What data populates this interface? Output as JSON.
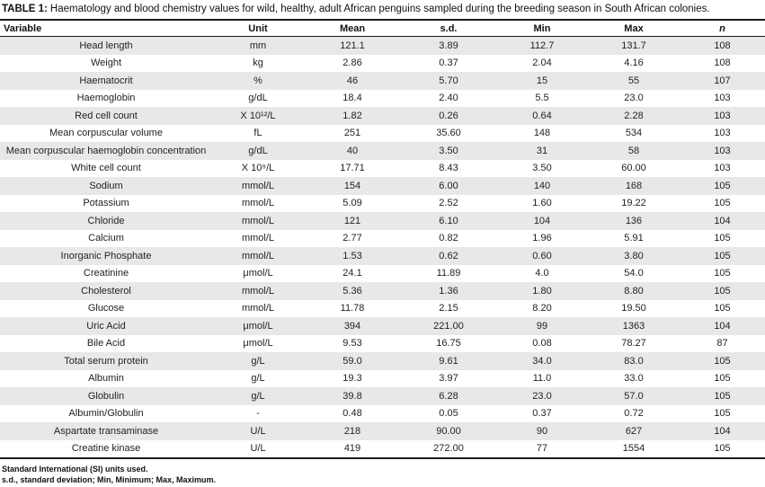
{
  "title": {
    "label": "TABLE 1:",
    "text": "Haematology and blood chemistry values for wild, healthy, adult African penguins sampled during the breeding season in South African colonies."
  },
  "table": {
    "columns": [
      "Variable",
      "Unit",
      "Mean",
      "s.d.",
      "Min",
      "Max",
      "n"
    ],
    "rows": [
      {
        "variable": "Head length",
        "unit": "mm",
        "mean": "121.1",
        "sd": "3.89",
        "min": "112.7",
        "max": "131.7",
        "n": "108"
      },
      {
        "variable": "Weight",
        "unit": "kg",
        "mean": "2.86",
        "sd": "0.37",
        "min": "2.04",
        "max": "4.16",
        "n": "108"
      },
      {
        "variable": "Haematocrit",
        "unit": "%",
        "mean": "46",
        "sd": "5.70",
        "min": "15",
        "max": "55",
        "n": "107"
      },
      {
        "variable": "Haemoglobin",
        "unit": "g/dL",
        "mean": "18.4",
        "sd": "2.40",
        "min": "5.5",
        "max": "23.0",
        "n": "103"
      },
      {
        "variable": "Red cell count",
        "unit": "X 10¹²/L",
        "mean": "1.82",
        "sd": "0.26",
        "min": "0.64",
        "max": "2.28",
        "n": "103"
      },
      {
        "variable": "Mean corpuscular volume",
        "unit": "fL",
        "mean": "251",
        "sd": "35.60",
        "min": "148",
        "max": "534",
        "n": "103"
      },
      {
        "variable": "Mean corpuscular haemoglobin concentration",
        "unit": "g/dL",
        "mean": "40",
        "sd": "3.50",
        "min": "31",
        "max": "58",
        "n": "103"
      },
      {
        "variable": "White cell count",
        "unit": "X 10⁹/L",
        "mean": "17.71",
        "sd": "8.43",
        "min": "3.50",
        "max": "60.00",
        "n": "103"
      },
      {
        "variable": "Sodium",
        "unit": "mmol/L",
        "mean": "154",
        "sd": "6.00",
        "min": "140",
        "max": "168",
        "n": "105"
      },
      {
        "variable": "Potassium",
        "unit": "mmol/L",
        "mean": "5.09",
        "sd": "2.52",
        "min": "1.60",
        "max": "19.22",
        "n": "105"
      },
      {
        "variable": "Chloride",
        "unit": "mmol/L",
        "mean": "121",
        "sd": "6.10",
        "min": "104",
        "max": "136",
        "n": "104"
      },
      {
        "variable": "Calcium",
        "unit": "mmol/L",
        "mean": "2.77",
        "sd": "0.82",
        "min": "1.96",
        "max": "5.91",
        "n": "105"
      },
      {
        "variable": "Inorganic Phosphate",
        "unit": "mmol/L",
        "mean": "1.53",
        "sd": "0.62",
        "min": "0.60",
        "max": "3.80",
        "n": "105"
      },
      {
        "variable": "Creatinine",
        "unit": "μmol/L",
        "mean": "24.1",
        "sd": "11.89",
        "min": "4.0",
        "max": "54.0",
        "n": "105"
      },
      {
        "variable": "Cholesterol",
        "unit": "mmol/L",
        "mean": "5.36",
        "sd": "1.36",
        "min": "1.80",
        "max": "8.80",
        "n": "105"
      },
      {
        "variable": "Glucose",
        "unit": "mmol/L",
        "mean": "11.78",
        "sd": "2.15",
        "min": "8.20",
        "max": "19.50",
        "n": "105"
      },
      {
        "variable": "Uric Acid",
        "unit": "μmol/L",
        "mean": "394",
        "sd": "221.00",
        "min": "99",
        "max": "1363",
        "n": "104"
      },
      {
        "variable": "Bile Acid",
        "unit": "μmol/L",
        "mean": "9.53",
        "sd": "16.75",
        "min": "0.08",
        "max": "78.27",
        "n": "87"
      },
      {
        "variable": "Total serum protein",
        "unit": "g/L",
        "mean": "59.0",
        "sd": "9.61",
        "min": "34.0",
        "max": "83.0",
        "n": "105"
      },
      {
        "variable": "Albumin",
        "unit": "g/L",
        "mean": "19.3",
        "sd": "3.97",
        "min": "11.0",
        "max": "33.0",
        "n": "105"
      },
      {
        "variable": "Globulin",
        "unit": "g/L",
        "mean": "39.8",
        "sd": "6.28",
        "min": "23.0",
        "max": "57.0",
        "n": "105"
      },
      {
        "variable": "Albumin/Globulin",
        "unit": "-",
        "mean": "0.48",
        "sd": "0.05",
        "min": "0.37",
        "max": "0.72",
        "n": "105"
      },
      {
        "variable": "Aspartate transaminase",
        "unit": "U/L",
        "mean": "218",
        "sd": "90.00",
        "min": "90",
        "max": "627",
        "n": "104"
      },
      {
        "variable": "Creatine kinase",
        "unit": "U/L",
        "mean": "419",
        "sd": "272.00",
        "min": "77",
        "max": "1554",
        "n": "105"
      }
    ]
  },
  "footnotes": [
    "Standard International (SI) units used.",
    "s.d., standard deviation; Min, Minimum; Max, Maximum."
  ],
  "colors": {
    "row_alt": "#e8e8e8",
    "rule": "#1c1c1c",
    "text": "#1f1f1f"
  }
}
